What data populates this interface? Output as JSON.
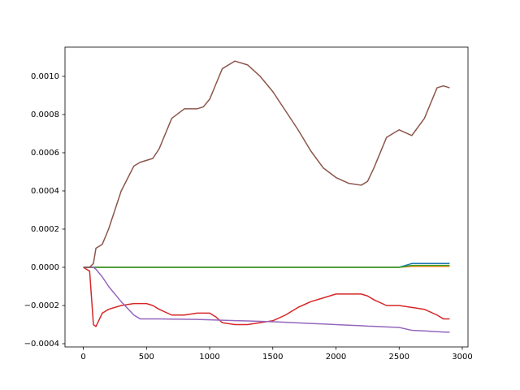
{
  "chart_data": {
    "type": "line",
    "x": [
      0,
      50,
      80,
      100,
      150,
      200,
      300,
      400,
      450,
      500,
      550,
      600,
      700,
      800,
      900,
      950,
      1000,
      1050,
      1100,
      1200,
      1300,
      1400,
      1500,
      1600,
      1700,
      1800,
      1900,
      2000,
      2100,
      2200,
      2250,
      2300,
      2400,
      2500,
      2600,
      2700,
      2800,
      2850,
      2900
    ],
    "series": [
      {
        "color": "#1f77b4",
        "values": [
          0,
          0,
          0,
          0,
          0,
          0,
          0,
          0,
          0,
          0,
          0,
          0,
          0,
          0,
          0,
          0,
          0,
          0,
          0,
          0,
          0,
          0,
          0,
          0,
          0,
          0,
          0,
          0,
          0,
          0,
          0,
          0,
          0,
          0,
          2e-05,
          2e-05,
          2e-05,
          2e-05,
          2e-05
        ]
      },
      {
        "color": "#ff7f0e",
        "values": [
          0,
          0,
          0,
          0,
          0,
          0,
          0,
          0,
          0,
          0,
          0,
          0,
          0,
          0,
          0,
          0,
          0,
          0,
          0,
          0,
          0,
          0,
          0,
          0,
          0,
          0,
          0,
          0,
          0,
          0,
          0,
          0,
          0,
          0,
          5e-06,
          5e-06,
          5e-06,
          5e-06,
          5e-06
        ]
      },
      {
        "color": "#2ca02c",
        "values": [
          0,
          0,
          0,
          0,
          0,
          0,
          0,
          0,
          0,
          0,
          0,
          0,
          0,
          0,
          0,
          0,
          0,
          0,
          0,
          0,
          0,
          0,
          0,
          0,
          0,
          0,
          0,
          0,
          0,
          0,
          0,
          0,
          0,
          0,
          1e-05,
          1e-05,
          1e-05,
          1e-05,
          1e-05
        ]
      },
      {
        "color": "#d62728",
        "values": [
          0,
          -2e-05,
          -0.0003,
          -0.00031,
          -0.00024,
          -0.00022,
          -0.0002,
          -0.00019,
          -0.00019,
          -0.00019,
          -0.0002,
          -0.00022,
          -0.00025,
          -0.00025,
          -0.00024,
          -0.00024,
          -0.00024,
          -0.00026,
          -0.00029,
          -0.0003,
          -0.0003,
          -0.00029,
          -0.00028,
          -0.00025,
          -0.00021,
          -0.00018,
          -0.00016,
          -0.00014,
          -0.00014,
          -0.00014,
          -0.00015,
          -0.00017,
          -0.0002,
          -0.0002,
          -0.00021,
          -0.00022,
          -0.00025,
          -0.00027,
          -0.00027
        ]
      },
      {
        "color": "#9467bd",
        "values": [
          0,
          0,
          0,
          -1e-05,
          -5e-05,
          -0.0001,
          -0.00018,
          -0.00025,
          -0.00027,
          -0.00027,
          -0.00027,
          -0.00027,
          -0.000271,
          -0.000272,
          -0.000273,
          -0.000274,
          -0.000275,
          -0.000276,
          -0.000277,
          -0.000279,
          -0.000281,
          -0.000283,
          -0.000285,
          -0.000288,
          -0.000291,
          -0.000294,
          -0.000297,
          -0.0003,
          -0.000303,
          -0.000306,
          -0.000308,
          -0.000309,
          -0.000312,
          -0.000315,
          -0.00033,
          -0.000333,
          -0.000337,
          -0.000339,
          -0.00034
        ]
      },
      {
        "color": "#8c564b",
        "values": [
          0,
          0,
          2e-05,
          0.0001,
          0.00012,
          0.0002,
          0.0004,
          0.00053,
          0.00055,
          0.00056,
          0.00057,
          0.00062,
          0.00078,
          0.00083,
          0.00083,
          0.00084,
          0.00088,
          0.00096,
          0.00104,
          0.00108,
          0.00106,
          0.001,
          0.00092,
          0.00082,
          0.00072,
          0.00061,
          0.00052,
          0.00047,
          0.00044,
          0.00043,
          0.00045,
          0.00052,
          0.00068,
          0.00072,
          0.00069,
          0.00078,
          0.00094,
          0.00095,
          0.00094
        ]
      }
    ],
    "xlim": [
      -145,
      3045
    ],
    "xticks": [
      0,
      500,
      1000,
      1500,
      2000,
      2500,
      3000
    ],
    "ylim": [
      -0.000417,
      0.001153
    ],
    "yticks": [
      {
        "value": -0.0004,
        "label": "−0.0004"
      },
      {
        "value": -0.0002,
        "label": "−0.0002"
      },
      {
        "value": 0,
        "label": "0.0000"
      },
      {
        "value": 0.0002,
        "label": "0.0002"
      },
      {
        "value": 0.0004,
        "label": "0.0004"
      },
      {
        "value": 0.0006,
        "label": "0.0006"
      },
      {
        "value": 0.0008,
        "label": "0.0008"
      },
      {
        "value": 0.001,
        "label": "0.0010"
      }
    ],
    "grid": false
  }
}
